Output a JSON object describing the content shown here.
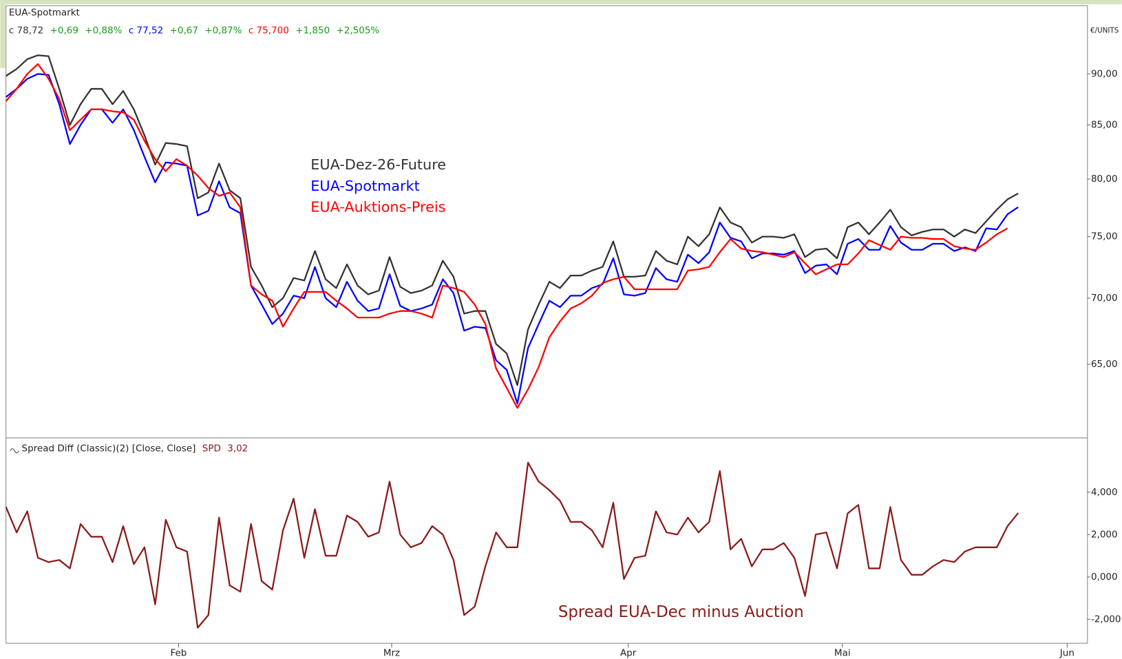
{
  "chart_data": [
    {
      "type": "line",
      "title": "EUA-Spotmarkt",
      "y_unit": "€/UNITS",
      "log_scale": true,
      "ylim": [
        60,
        95.6
      ],
      "xlim": [
        0,
        101.5
      ],
      "yticks": [
        {
          "value": 90,
          "label": "90,00"
        },
        {
          "value": 85,
          "label": "85,00"
        },
        {
          "value": 80,
          "label": "80,00"
        },
        {
          "value": 75,
          "label": "75,00"
        },
        {
          "value": 70,
          "label": "70,00"
        },
        {
          "value": 65,
          "label": "65,00"
        }
      ],
      "series": [
        {
          "name": "EUA-Dez-26-Future",
          "color": "#333333",
          "header": {
            "close": "c 78,72",
            "change": "+0,69",
            "change_pct": "+0,88%"
          },
          "values": [
            89.8,
            90.5,
            91.5,
            91.9,
            91.8,
            88.5,
            85.0,
            87.0,
            88.5,
            88.5,
            87.0,
            88.3,
            86.5,
            84.0,
            81.3,
            83.3,
            83.2,
            83.0,
            78.3,
            78.8,
            81.4,
            79.0,
            78.3,
            72.5,
            71.0,
            69.3,
            70.0,
            71.6,
            71.4,
            73.8,
            71.5,
            70.8,
            72.7,
            71.0,
            70.3,
            70.6,
            73.3,
            70.9,
            70.4,
            70.6,
            71.0,
            73.0,
            71.7,
            68.8,
            69.0,
            69.0,
            66.5,
            65.8,
            63.5,
            67.6,
            69.5,
            71.3,
            70.8,
            71.8,
            71.8,
            72.2,
            72.5,
            74.6,
            71.7,
            71.7,
            71.8,
            73.8,
            73.0,
            72.7,
            75.0,
            74.2,
            75.2,
            77.5,
            76.2,
            75.8,
            74.5,
            75.0,
            75.0,
            74.9,
            75.2,
            73.3,
            73.9,
            74.0,
            73.2,
            75.8,
            76.2,
            75.2,
            76.2,
            77.3,
            75.8,
            75.1,
            75.4,
            75.6,
            75.6,
            75.0,
            75.6,
            75.3,
            76.3,
            77.3,
            78.2,
            78.72
          ]
        },
        {
          "name": "EUA-Spotmarkt",
          "color": "#0000ff",
          "header": {
            "close": "c 77,52",
            "change": "+0,67",
            "change_pct": "+0,87%"
          },
          "values": [
            87.7,
            88.5,
            89.5,
            90.0,
            89.9,
            87.0,
            83.2,
            85.0,
            86.5,
            86.5,
            85.2,
            86.5,
            84.5,
            82.0,
            79.7,
            81.5,
            81.4,
            81.2,
            76.8,
            77.2,
            79.8,
            77.5,
            77.0,
            71.0,
            69.5,
            68.0,
            68.8,
            70.2,
            70.0,
            72.5,
            70.0,
            69.3,
            71.3,
            69.8,
            69.0,
            69.2,
            71.9,
            69.4,
            69.0,
            69.2,
            69.5,
            71.5,
            70.4,
            67.5,
            67.8,
            67.7,
            65.3,
            64.6,
            62.2,
            66.2,
            68.0,
            69.8,
            69.3,
            70.2,
            70.2,
            70.8,
            71.1,
            73.2,
            70.3,
            70.2,
            70.4,
            72.4,
            71.5,
            71.3,
            73.5,
            72.8,
            73.7,
            76.2,
            74.9,
            74.6,
            73.2,
            73.6,
            73.6,
            73.5,
            73.8,
            72.0,
            72.6,
            72.7,
            71.9,
            74.4,
            74.8,
            73.9,
            73.9,
            75.9,
            74.5,
            73.9,
            73.9,
            74.4,
            74.4,
            73.8,
            74.1,
            73.8,
            75.7,
            75.6,
            76.9,
            77.52
          ]
        },
        {
          "name": "EUA-Auktions-Preis",
          "color": "#ff0000",
          "header": {
            "close": "c 75,700",
            "change": "+1,850",
            "change_pct": "+2,505%"
          },
          "values": [
            87.3,
            88.5,
            90.0,
            91.0,
            89.5,
            87.5,
            84.5,
            85.5,
            86.5,
            86.5,
            86.3,
            86.2,
            85.5,
            83.5,
            81.8,
            80.7,
            81.8,
            81.2,
            80.3,
            79.2,
            78.5,
            78.8,
            77.5,
            71.0,
            70.3,
            69.8,
            67.8,
            69.2,
            70.5,
            70.5,
            70.5,
            69.8,
            69.2,
            68.5,
            68.5,
            68.5,
            68.8,
            69.0,
            69.0,
            68.8,
            68.5,
            71.0,
            70.8,
            70.5,
            69.5,
            68.0,
            64.7,
            63.3,
            61.9,
            63.2,
            64.8,
            67.0,
            68.2,
            69.2,
            69.6,
            70.2,
            71.2,
            71.5,
            71.7,
            70.7,
            70.7,
            70.7,
            70.7,
            70.7,
            72.2,
            72.3,
            72.5,
            73.7,
            74.8,
            74.0,
            73.8,
            73.7,
            73.5,
            73.3,
            73.7,
            72.8,
            71.9,
            72.3,
            72.7,
            72.7,
            73.6,
            74.7,
            74.3,
            73.9,
            75.0,
            74.9,
            74.9,
            74.8,
            74.8,
            74.2,
            74.0,
            73.9,
            74.5,
            75.2,
            75.7,
            null
          ]
        }
      ]
    },
    {
      "type": "line",
      "title": "Spread Diff (Classic)(2)  [Close, Close]",
      "annotation": "Spread EUA-Dec minus Auction",
      "ylim": [
        -3.1,
        6.6
      ],
      "xlim": [
        0,
        101.5
      ],
      "yticks": [
        {
          "value": 4,
          "label": "4,000"
        },
        {
          "value": 2,
          "label": "2,000"
        },
        {
          "value": 0,
          "label": "0,000"
        },
        {
          "value": -2,
          "label": "-2,000"
        }
      ],
      "xticks": [
        {
          "value": 16.2,
          "label": "Feb"
        },
        {
          "value": 36.2,
          "label": "Mrz"
        },
        {
          "value": 58.4,
          "label": "Apr"
        },
        {
          "value": 78.5,
          "label": "Mai"
        },
        {
          "value": 99.6,
          "label": "Jun"
        }
      ],
      "series": [
        {
          "name": "SPD",
          "last_label": "3,02",
          "color": "#8b1a1a",
          "values": [
            3.3,
            2.1,
            3.1,
            0.9,
            0.7,
            0.8,
            0.4,
            2.5,
            1.9,
            1.9,
            0.7,
            2.4,
            0.6,
            1.4,
            -1.3,
            2.7,
            1.4,
            1.2,
            -2.4,
            -1.8,
            2.8,
            -0.4,
            -0.7,
            2.5,
            -0.2,
            -0.6,
            2.2,
            3.7,
            0.9,
            3.2,
            1.0,
            1.0,
            2.9,
            2.6,
            1.9,
            2.1,
            4.5,
            2.0,
            1.4,
            1.6,
            2.4,
            2.0,
            0.8,
            -1.8,
            -1.4,
            0.5,
            2.1,
            1.4,
            1.4,
            5.4,
            4.5,
            4.1,
            3.6,
            2.6,
            2.6,
            2.2,
            1.4,
            3.5,
            -0.1,
            0.9,
            1.0,
            3.1,
            2.1,
            2.0,
            2.8,
            2.1,
            2.6,
            5.0,
            1.3,
            1.8,
            0.5,
            1.3,
            1.3,
            1.6,
            0.9,
            -0.9,
            2.0,
            2.1,
            0.4,
            3.0,
            3.4,
            0.4,
            0.4,
            3.3,
            0.8,
            0.1,
            0.1,
            0.5,
            0.8,
            0.7,
            1.2,
            1.4,
            1.4,
            1.4,
            2.4,
            3.02
          ]
        }
      ]
    }
  ]
}
